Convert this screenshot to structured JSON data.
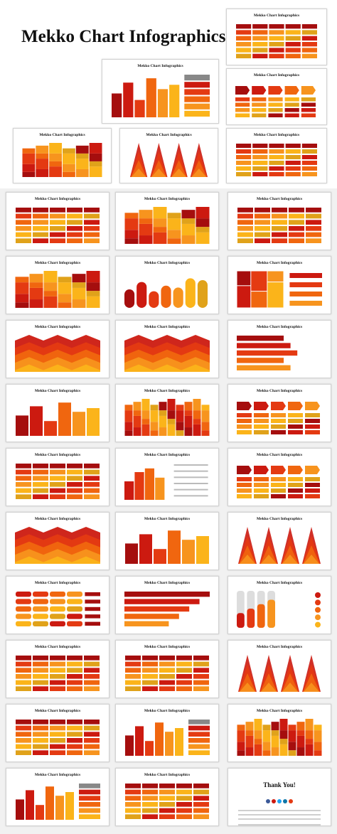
{
  "page": {
    "title": "Mekko Chart Infographics"
  },
  "slide_title": "Mekko Chart Infographics",
  "thank_you": "Thank You!",
  "palette": [
    "#a50e0e",
    "#cc1a10",
    "#e43a12",
    "#f0660f",
    "#f7941e",
    "#fbb41a",
    "#e0a21a",
    "#7a1a08"
  ],
  "slides": [
    {
      "id": "s1",
      "kind": "table"
    },
    {
      "id": "s2",
      "kind": "bars-legend"
    },
    {
      "id": "s3",
      "kind": "arrows"
    },
    {
      "id": "s4",
      "kind": "mekko"
    },
    {
      "id": "s5",
      "kind": "triangles"
    },
    {
      "id": "s6",
      "kind": "table"
    },
    {
      "id": "s7",
      "kind": "table"
    },
    {
      "id": "s8",
      "kind": "mekko"
    },
    {
      "id": "s9",
      "kind": "table"
    },
    {
      "id": "s10",
      "kind": "stacked"
    },
    {
      "id": "s11",
      "kind": "rounded"
    },
    {
      "id": "s12",
      "kind": "mosaic"
    },
    {
      "id": "s13",
      "kind": "wave"
    },
    {
      "id": "s14",
      "kind": "area"
    },
    {
      "id": "s15",
      "kind": "hbars"
    },
    {
      "id": "s16",
      "kind": "bars"
    },
    {
      "id": "s17",
      "kind": "grid"
    },
    {
      "id": "s18",
      "kind": "arrows"
    },
    {
      "id": "s19",
      "kind": "table"
    },
    {
      "id": "s20",
      "kind": "sketch"
    },
    {
      "id": "s21",
      "kind": "pentagons"
    },
    {
      "id": "s22",
      "kind": "wave"
    },
    {
      "id": "s23",
      "kind": "bars"
    },
    {
      "id": "s24",
      "kind": "triangles"
    },
    {
      "id": "s25",
      "kind": "rounded-rows"
    },
    {
      "id": "s26",
      "kind": "funnel"
    },
    {
      "id": "s27",
      "kind": "tubes"
    },
    {
      "id": "s28",
      "kind": "table"
    },
    {
      "id": "s29",
      "kind": "table"
    },
    {
      "id": "s30",
      "kind": "triangles"
    },
    {
      "id": "s31",
      "kind": "table"
    },
    {
      "id": "s32",
      "kind": "bars-legend"
    },
    {
      "id": "s33",
      "kind": "grid"
    },
    {
      "id": "s34",
      "kind": "bars-legend"
    },
    {
      "id": "s35",
      "kind": "table"
    },
    {
      "id": "s36",
      "kind": "thanks"
    }
  ]
}
